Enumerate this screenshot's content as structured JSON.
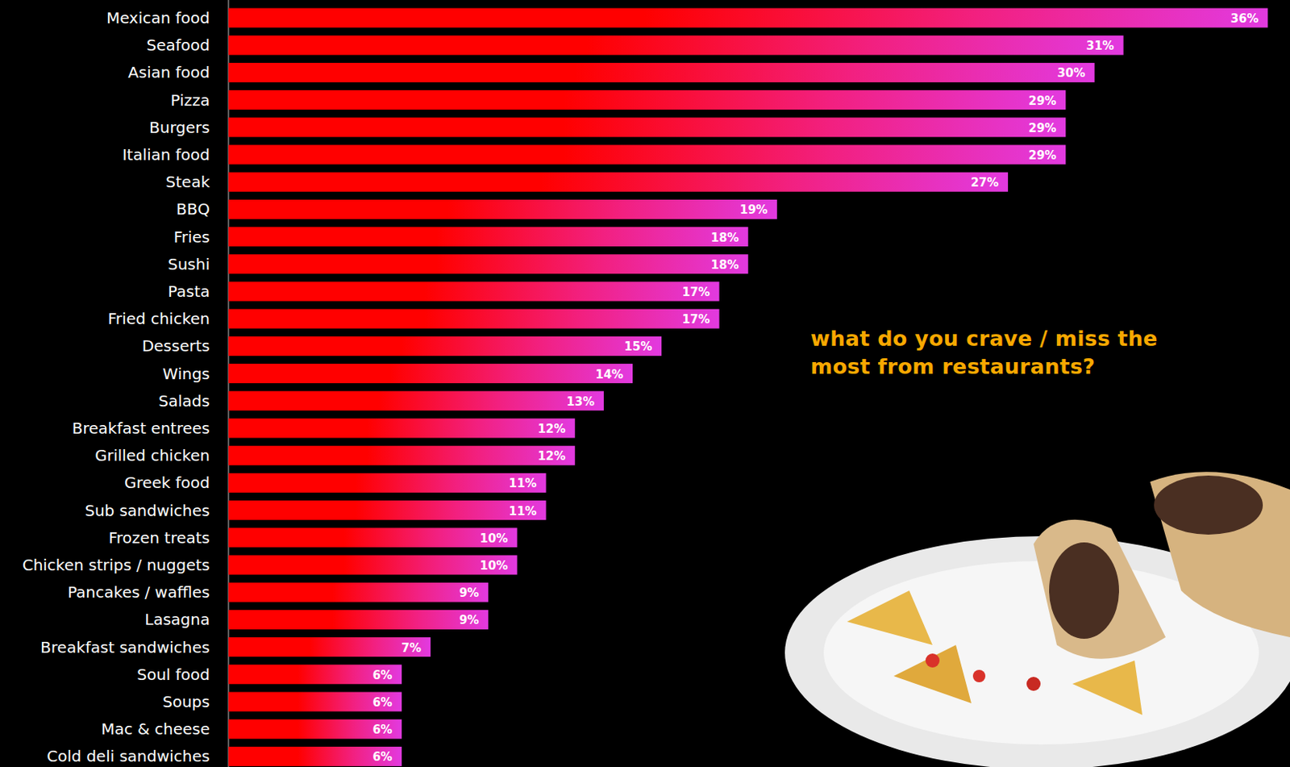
{
  "chart_data": {
    "type": "bar",
    "orientation": "horizontal",
    "title": "what do you crave / miss the most from restaurants?",
    "categories": [
      "Mexican food",
      "Seafood",
      "Asian food",
      "Pizza",
      "Burgers",
      "Italian food",
      "Steak",
      "BBQ",
      "Fries",
      "Sushi",
      "Pasta",
      "Fried chicken",
      "Desserts",
      "Wings",
      "Salads",
      "Breakfast entrees",
      "Grilled chicken",
      "Greek food",
      "Sub sandwiches",
      "Frozen treats",
      "Chicken strips / nuggets",
      "Pancakes / waffles",
      "Lasagna",
      "Breakfast sandwiches",
      "Soul food",
      "Soups",
      "Mac & cheese",
      "Cold deli sandwiches"
    ],
    "values": [
      36,
      31,
      30,
      29,
      29,
      29,
      27,
      19,
      18,
      18,
      17,
      17,
      15,
      14,
      13,
      12,
      12,
      11,
      11,
      10,
      10,
      9,
      9,
      7,
      6,
      6,
      6,
      6
    ],
    "value_labels": [
      "36%",
      "31%",
      "30%",
      "29%",
      "29%",
      "29%",
      "27%",
      "19%",
      "18%",
      "18%",
      "17%",
      "17%",
      "15%",
      "14%",
      "13%",
      "12%",
      "12%",
      "11%",
      "11%",
      "10%",
      "10%",
      "9%",
      "9%",
      "7%",
      "6%",
      "6%",
      "6%",
      "6%"
    ],
    "xlim": [
      0,
      36.5
    ],
    "color": "#ff0000",
    "data_labels": true,
    "grid": false,
    "tick_labels": "y"
  }
}
